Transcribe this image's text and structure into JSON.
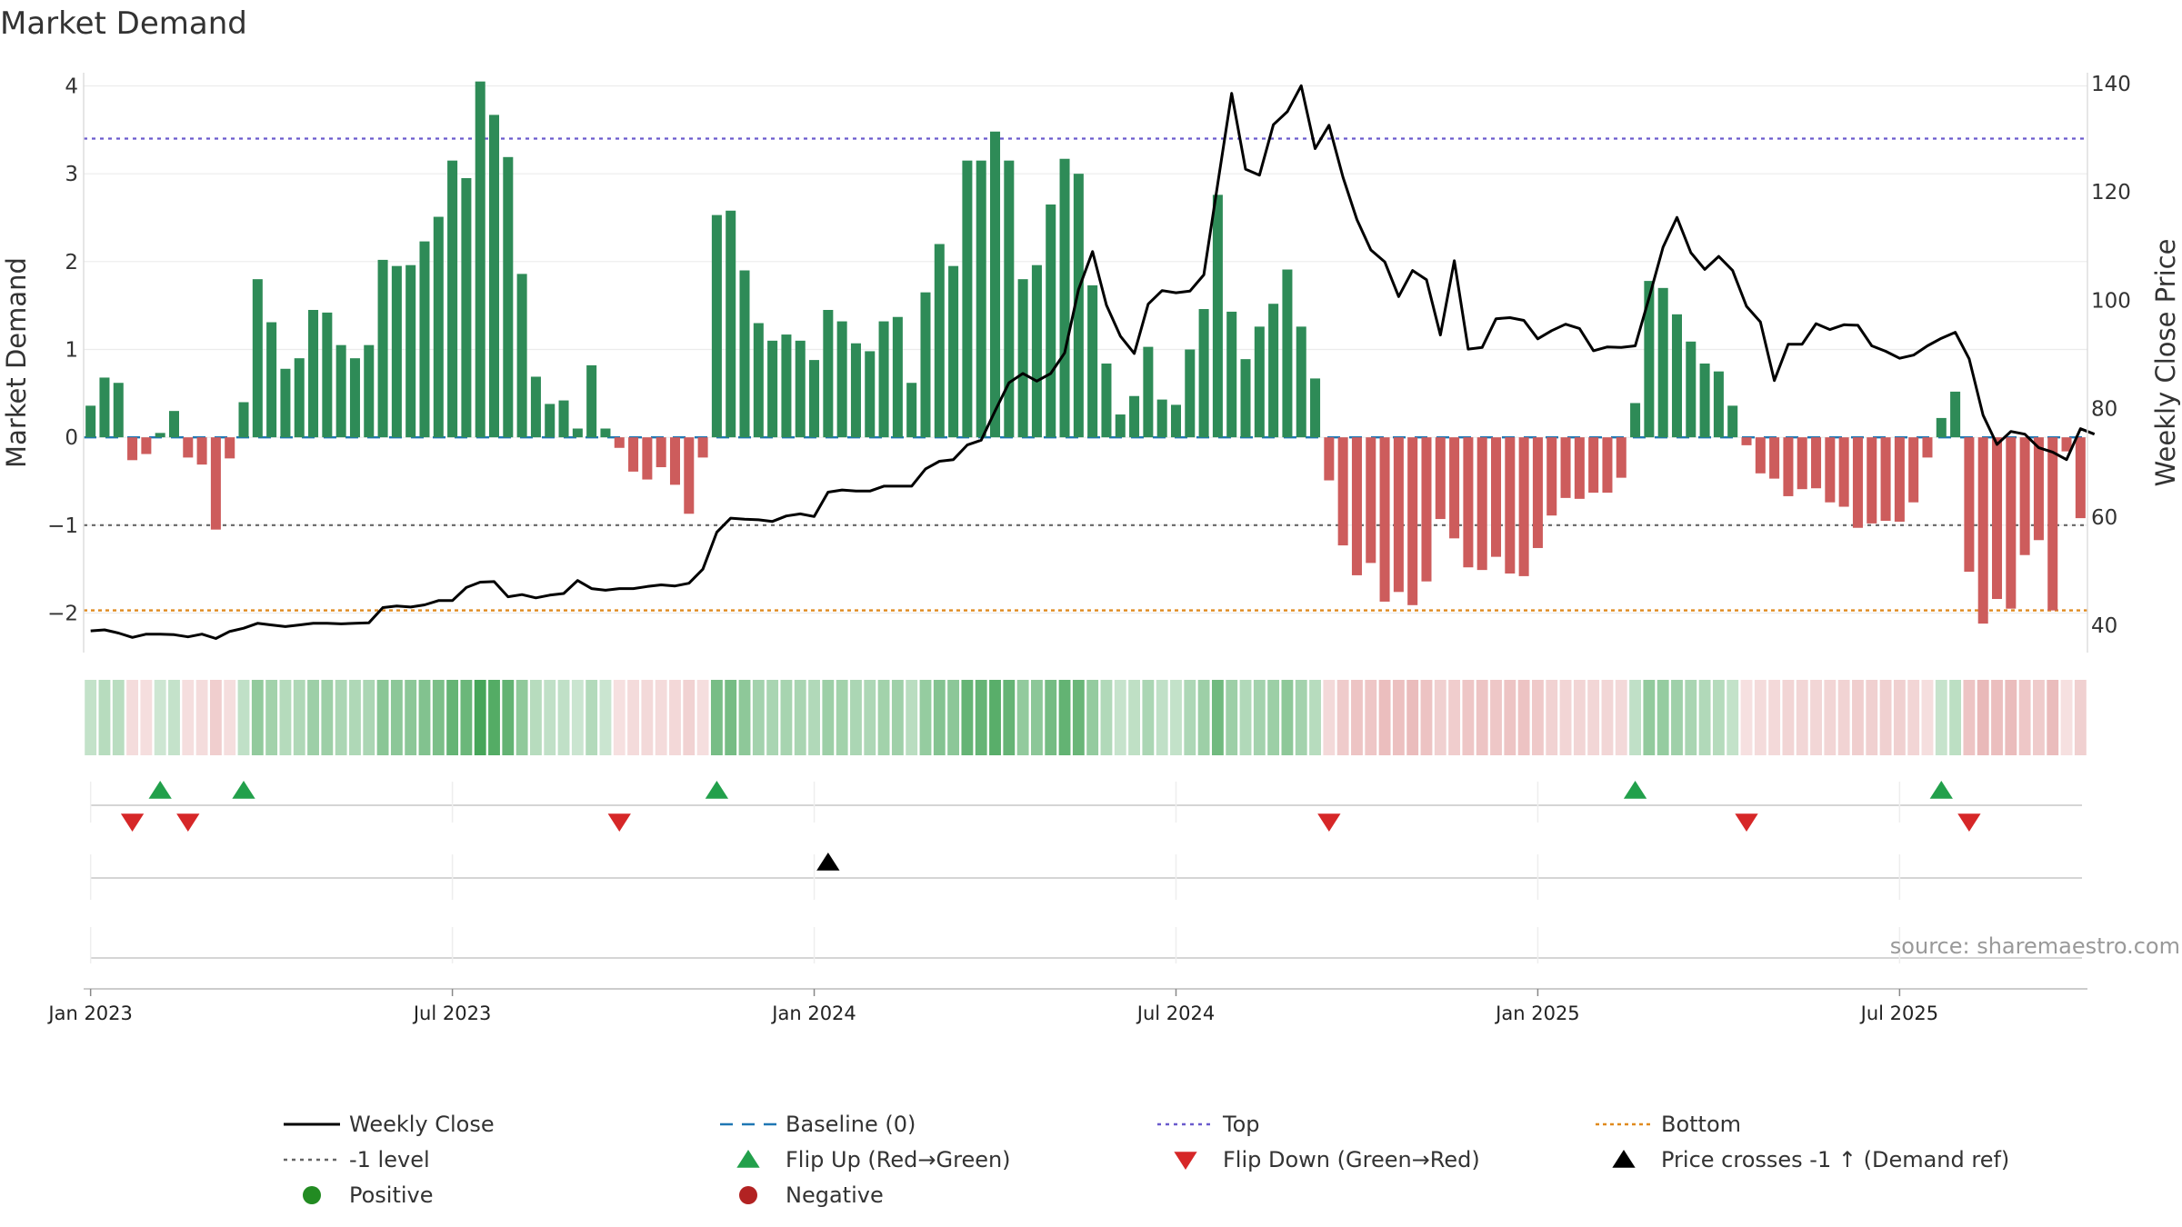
{
  "title": "Market Demand",
  "source": "source: sharemaestro.com",
  "colors": {
    "positive": "#2e8b57",
    "negative": "#cd5c5c",
    "price": "#000000",
    "baseline": "#1f77b4",
    "top": "#6a5acd",
    "minus_one": "#666666",
    "bottom": "#e08a1e",
    "flip_up": "#22a04b",
    "flip_down": "#d62728",
    "cross": "#000000",
    "dot_positive": "#228b22",
    "dot_negative": "#b22222"
  },
  "chart_data": {
    "type": "bar",
    "title": "Market Demand",
    "ylabel": "Market Demand",
    "y2label": "Weekly Close Price",
    "ylim": [
      -2.45,
      4.15
    ],
    "y2lim": [
      35,
      142
    ],
    "yticks": [
      "4",
      "3",
      "2",
      "1",
      "0",
      "−1",
      "−2"
    ],
    "yticks_values": [
      4,
      3,
      2,
      1,
      0,
      -1,
      -2
    ],
    "y2ticks": [
      "140",
      "120",
      "100",
      "80",
      "60",
      "40"
    ],
    "y2ticks_values": [
      140,
      120,
      100,
      80,
      60,
      40
    ],
    "x_start": "2023-01-02",
    "xticks": [
      {
        "date": "2023-01-02",
        "label": "Jan 2023"
      },
      {
        "date": "2023-07-03",
        "label": "Jul 2023"
      },
      {
        "date": "2024-01-01",
        "label": "Jan 2024"
      },
      {
        "date": "2024-07-01",
        "label": "Jul 2024"
      },
      {
        "date": "2024-12-30",
        "label": "Jan 2025"
      },
      {
        "date": "2025-06-30",
        "label": "Jul 2025"
      }
    ],
    "reference_lines": {
      "top": 3.4,
      "minus_one": -1,
      "bottom": -1.97,
      "baseline": 0
    },
    "demand": [
      0.36,
      0.68,
      0.62,
      -0.26,
      -0.19,
      0.05,
      0.3,
      -0.23,
      -0.31,
      -1.05,
      -0.24,
      0.4,
      1.8,
      1.31,
      0.78,
      0.9,
      1.45,
      1.42,
      1.05,
      0.9,
      1.05,
      2.02,
      1.95,
      1.96,
      2.23,
      2.51,
      3.15,
      2.95,
      4.05,
      3.67,
      3.19,
      1.86,
      0.69,
      0.38,
      0.42,
      0.1,
      0.82,
      0.1,
      -0.12,
      -0.39,
      -0.48,
      -0.34,
      -0.54,
      -0.87,
      -0.23,
      2.53,
      2.58,
      1.9,
      1.3,
      1.1,
      1.17,
      1.1,
      0.88,
      1.45,
      1.32,
      1.07,
      0.98,
      1.32,
      1.37,
      0.62,
      1.65,
      2.2,
      1.95,
      3.15,
      3.15,
      3.48,
      3.15,
      1.8,
      1.96,
      2.65,
      3.17,
      3.0,
      1.73,
      0.84,
      0.26,
      0.47,
      1.03,
      0.43,
      0.37,
      1.0,
      1.46,
      2.76,
      1.43,
      0.89,
      1.26,
      1.52,
      1.91,
      1.26,
      0.67,
      -0.49,
      -1.23,
      -1.57,
      -1.43,
      -1.87,
      -1.76,
      -1.91,
      -1.64,
      -0.93,
      -1.15,
      -1.48,
      -1.51,
      -1.36,
      -1.55,
      -1.58,
      -1.26,
      -0.89,
      -0.69,
      -0.7,
      -0.63,
      -0.63,
      -0.46,
      0.39,
      1.78,
      1.7,
      1.4,
      1.09,
      0.84,
      0.75,
      0.36,
      -0.09,
      -0.41,
      -0.47,
      -0.67,
      -0.59,
      -0.58,
      -0.74,
      -0.79,
      -1.03,
      -0.98,
      -0.95,
      -0.96,
      -0.74,
      -0.23,
      0.22,
      0.52,
      -1.53,
      -2.12,
      -1.84,
      -1.95,
      -1.34,
      -1.17,
      -1.97,
      -0.16,
      -0.92
    ],
    "price": [
      39,
      39.2,
      38.6,
      37.8,
      38.4,
      38.4,
      38.3,
      37.9,
      38.4,
      37.6,
      38.9,
      39.5,
      40.4,
      40.1,
      39.8,
      40.1,
      40.4,
      40.4,
      40.3,
      40.4,
      40.5,
      43.3,
      43.6,
      43.4,
      43.8,
      44.6,
      44.6,
      47,
      48,
      48.1,
      45.3,
      45.7,
      45.1,
      45.6,
      45.9,
      48.3,
      46.8,
      46.5,
      46.8,
      46.8,
      47.2,
      47.5,
      47.3,
      47.8,
      50.4,
      57.2,
      59.8,
      59.6,
      59.5,
      59.2,
      60.2,
      60.6,
      60.1,
      64.6,
      65,
      64.8,
      64.8,
      65.7,
      65.7,
      65.7,
      68.9,
      70.3,
      70.6,
      73.3,
      74.2,
      79.6,
      84.8,
      86.5,
      85.1,
      86.5,
      90.3,
      102,
      109,
      99.1,
      93.4,
      90.2,
      99.3,
      101.8,
      101.4,
      101.7,
      104.7,
      121.5,
      138.2,
      124.2,
      123.1,
      132.4,
      134.8,
      139.6,
      128,
      132.3,
      122.7,
      114.9,
      109.3,
      107.1,
      100.7,
      105.5,
      103.8,
      93.6,
      107.3,
      91,
      91.3,
      96.6,
      96.8,
      96.3,
      92.9,
      94.4,
      95.6,
      94.8,
      90.7,
      91.4,
      91.3,
      91.6,
      100.5,
      109.8,
      115.3,
      108.8,
      105.7,
      108.1,
      105.5,
      98.9,
      96,
      85.2,
      91.9,
      91.9,
      95.7,
      94.6,
      95.5,
      95.4,
      91.6,
      90.6,
      89.3,
      89.9,
      91.6,
      93,
      94.1,
      89.2,
      78.8,
      73.4,
      75.8,
      75.3,
      72.8,
      72,
      70.6,
      76.3,
      75.3
    ],
    "flip_up_weeks": [
      5,
      11,
      45,
      111,
      133
    ],
    "flip_down_weeks": [
      3,
      7,
      38,
      89,
      119,
      135
    ],
    "cross_weeks": [
      53
    ],
    "series": [
      {
        "name": "Weekly Close",
        "role": "price"
      },
      {
        "name": "Baseline (0)",
        "role": "baseline"
      },
      {
        "name": "Top",
        "role": "top"
      },
      {
        "name": "Bottom",
        "role": "bottom"
      },
      {
        "name": "-1 level",
        "role": "minus_one"
      },
      {
        "name": "Flip Up (Red→Green)",
        "role": "flip_up"
      },
      {
        "name": "Flip Down (Green→Red)",
        "role": "flip_down"
      },
      {
        "name": "Price crosses -1 ↑ (Demand ref)",
        "role": "cross"
      },
      {
        "name": "Positive",
        "role": "dot_positive"
      },
      {
        "name": "Negative",
        "role": "dot_negative"
      }
    ]
  }
}
